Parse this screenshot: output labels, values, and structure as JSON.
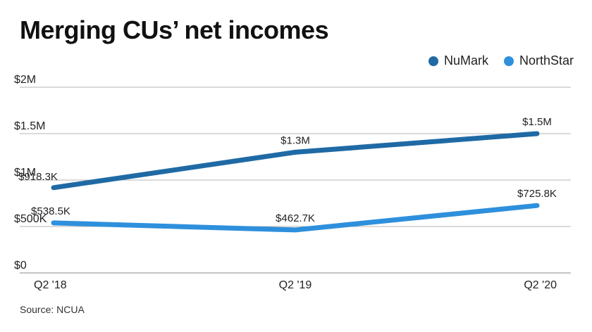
{
  "title": "Merging CUs’ net incomes",
  "source": "Source: NCUA",
  "chart_data": {
    "type": "line",
    "title": "Merging CUs’ net incomes",
    "categories": [
      "Q2 '18",
      "Q2 '19",
      "Q2 '20"
    ],
    "ylim": [
      0,
      2000000
    ],
    "yticks": [
      0,
      500000,
      1000000,
      1500000,
      2000000
    ],
    "ytick_labels": [
      "$0",
      "$500K",
      "$1M",
      "$1.5M",
      "$2M"
    ],
    "grid": true,
    "legend_position": "top-right",
    "series": [
      {
        "name": "NuMark",
        "color": "#1f6aa5",
        "values": [
          918300,
          1300000,
          1500000
        ],
        "labels": [
          "$918.3K",
          "$1.3M",
          "$1.5M"
        ]
      },
      {
        "name": "NorthStar",
        "color": "#2e90dc",
        "values": [
          538500,
          462700,
          725800
        ],
        "labels": [
          "$538.5K",
          "$462.7K",
          "$725.8K"
        ]
      }
    ]
  }
}
